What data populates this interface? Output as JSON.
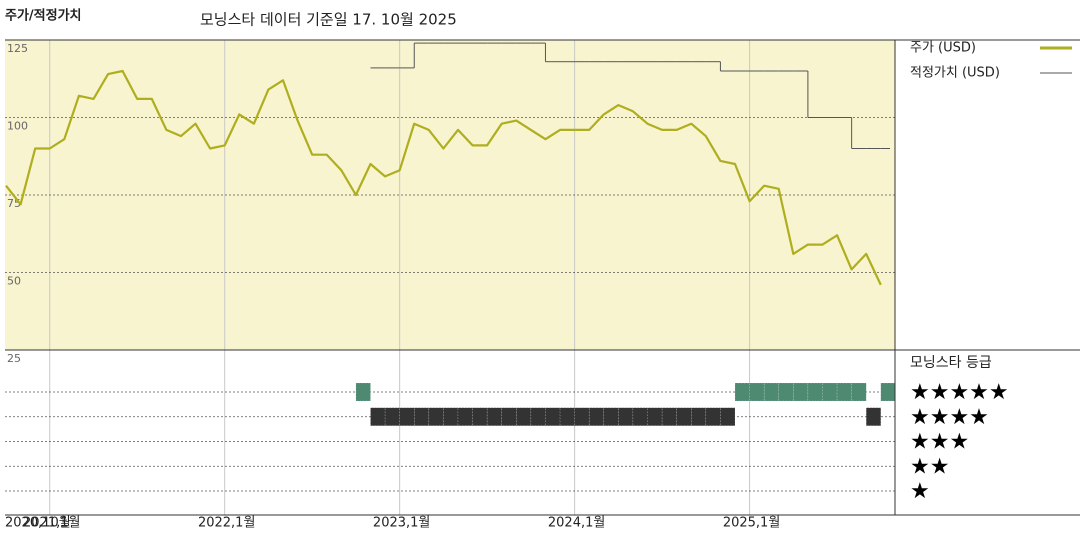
{
  "header": {
    "title": "주가/적정가치",
    "subtitle": "모닝스타 데이터 기준일 17. 10월 2025"
  },
  "chart_data": [
    {
      "type": "line",
      "x": [
        "2020-10",
        "2020-11",
        "2020-12",
        "2021-01",
        "2021-02",
        "2021-03",
        "2021-04",
        "2021-05",
        "2021-06",
        "2021-07",
        "2021-08",
        "2021-09",
        "2021-10",
        "2021-11",
        "2021-12",
        "2022-01",
        "2022-02",
        "2022-03",
        "2022-04",
        "2022-05",
        "2022-06",
        "2022-07",
        "2022-08",
        "2022-09",
        "2022-10",
        "2022-11",
        "2022-12",
        "2023-01",
        "2023-02",
        "2023-03",
        "2023-04",
        "2023-05",
        "2023-06",
        "2023-07",
        "2023-08",
        "2023-09",
        "2023-10",
        "2023-11",
        "2023-12",
        "2024-01",
        "2024-02",
        "2024-03",
        "2024-04",
        "2024-05",
        "2024-06",
        "2024-07",
        "2024-08",
        "2024-09",
        "2024-10",
        "2024-11",
        "2024-12",
        "2025-01",
        "2025-02",
        "2025-03",
        "2025-04",
        "2025-05",
        "2025-06",
        "2025-07",
        "2025-08",
        "2025-09",
        "2025-10"
      ],
      "series": [
        {
          "name": "주가 (USD)",
          "color": "#aeae1e",
          "values": [
            78,
            72,
            90,
            90,
            93,
            107,
            106,
            114,
            115,
            106,
            106,
            96,
            94,
            98,
            90,
            91,
            101,
            98,
            109,
            112,
            99,
            88,
            88,
            83,
            75,
            85,
            81,
            83,
            98,
            96,
            90,
            96,
            91,
            91,
            98,
            99,
            96,
            93,
            96,
            96,
            96,
            101,
            104,
            102,
            98,
            96,
            96,
            98,
            94,
            86,
            85,
            73,
            78,
            77,
            56,
            59,
            59,
            62,
            51,
            56,
            46
          ]
        },
        {
          "name": "적정가치 (USD)",
          "color": "#555555",
          "step": true,
          "values": [
            null,
            null,
            null,
            null,
            null,
            null,
            null,
            null,
            null,
            null,
            null,
            null,
            null,
            null,
            null,
            null,
            null,
            null,
            null,
            null,
            null,
            null,
            null,
            null,
            null,
            116,
            116,
            116,
            124,
            124,
            124,
            124,
            124,
            124,
            124,
            124,
            124,
            118,
            118,
            118,
            118,
            118,
            118,
            118,
            118,
            118,
            118,
            118,
            118,
            115,
            115,
            115,
            115,
            115,
            115,
            100,
            100,
            100,
            90,
            90,
            90
          ]
        }
      ],
      "ylim": [
        25,
        125
      ],
      "yticks": [
        25,
        50,
        75,
        100,
        125
      ],
      "grid": true,
      "xticks": [
        {
          "value": "2020-10",
          "label": "2020,10월"
        },
        {
          "value": "2021-01",
          "label": "2021,1월"
        },
        {
          "value": "2022-01",
          "label": "2022,1월"
        },
        {
          "value": "2023-01",
          "label": "2023,1월"
        },
        {
          "value": "2024-01",
          "label": "2024,1월"
        },
        {
          "value": "2025-01",
          "label": "2025,1월"
        }
      ],
      "background": "#f8f4cf"
    },
    {
      "type": "rating",
      "title": "모닝스타 등급",
      "categories": [
        "★★★★★",
        "★★★★",
        "★★★",
        "★★",
        "★"
      ],
      "colors": [
        "#4e8a72",
        "#333333",
        "#333333",
        "#333333",
        "#333333"
      ],
      "x": [
        "2020-10",
        "2020-11",
        "2020-12",
        "2021-01",
        "2021-02",
        "2021-03",
        "2021-04",
        "2021-05",
        "2021-06",
        "2021-07",
        "2021-08",
        "2021-09",
        "2021-10",
        "2021-11",
        "2021-12",
        "2022-01",
        "2022-02",
        "2022-03",
        "2022-04",
        "2022-05",
        "2022-06",
        "2022-07",
        "2022-08",
        "2022-09",
        "2022-10",
        "2022-11",
        "2022-12",
        "2023-01",
        "2023-02",
        "2023-03",
        "2023-04",
        "2023-05",
        "2023-06",
        "2023-07",
        "2023-08",
        "2023-09",
        "2023-10",
        "2023-11",
        "2023-12",
        "2024-01",
        "2024-02",
        "2024-03",
        "2024-04",
        "2024-05",
        "2024-06",
        "2024-07",
        "2024-08",
        "2024-09",
        "2024-10",
        "2024-11",
        "2024-12",
        "2025-01",
        "2025-02",
        "2025-03",
        "2025-04",
        "2025-05",
        "2025-06",
        "2025-07",
        "2025-08",
        "2025-09",
        "2025-10"
      ],
      "values": [
        null,
        null,
        null,
        null,
        null,
        null,
        null,
        null,
        null,
        null,
        null,
        null,
        null,
        null,
        null,
        null,
        null,
        null,
        null,
        null,
        null,
        null,
        null,
        null,
        5,
        4,
        4,
        4,
        4,
        4,
        4,
        4,
        4,
        4,
        4,
        4,
        4,
        4,
        4,
        4,
        4,
        4,
        4,
        4,
        4,
        4,
        4,
        4,
        4,
        4,
        5,
        5,
        5,
        5,
        5,
        5,
        5,
        5,
        5,
        4,
        5
      ]
    }
  ]
}
